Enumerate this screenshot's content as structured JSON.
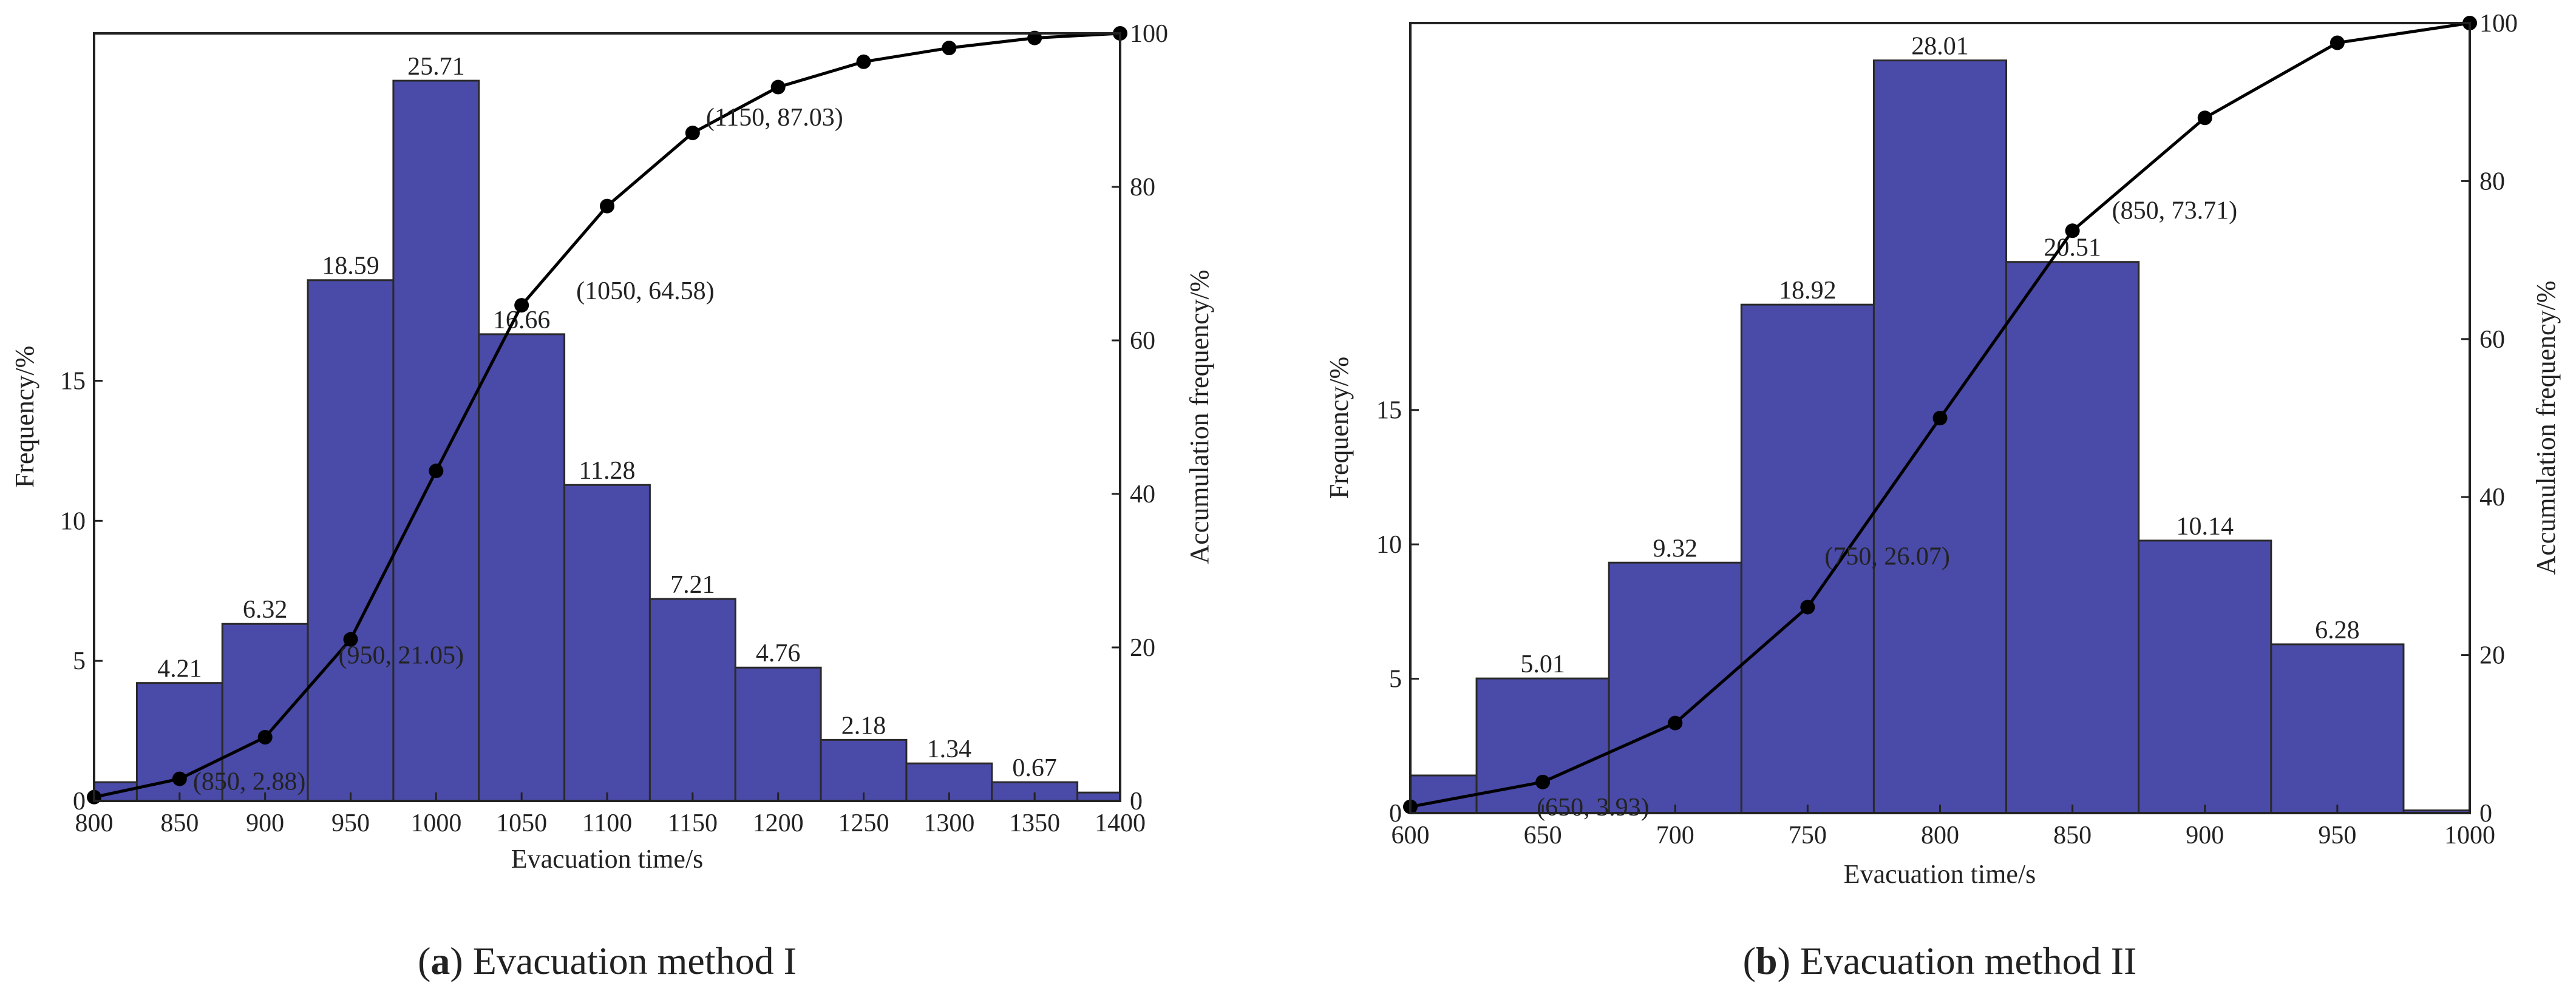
{
  "panels": [
    {
      "id": "a",
      "caption_letter": "a",
      "caption_text": "Evacuation method I",
      "xlabel": "Evacuation time/s",
      "ylabel": "Frequency/%",
      "y2label": "Accumulation frequency/%"
    },
    {
      "id": "b",
      "caption_letter": "b",
      "caption_text": "Evacuation method II",
      "xlabel": "Evacuation time/s",
      "ylabel": "Frequency/%",
      "y2label": "Accumulation frequency/%"
    }
  ],
  "colors": {
    "bar_fill": "#4a4aa8",
    "bar_stroke": "#2a2a2a",
    "line": "#000000",
    "axis": "#222222"
  },
  "chart_data": [
    {
      "type": "bar",
      "title": "(a) Evacuation method I",
      "xlabel": "Evacuation time/s",
      "ylabel": "Frequency/%",
      "y2label": "Accumulation frequency/%",
      "xlim": [
        800,
        1400
      ],
      "ylim": [
        0,
        27.4
      ],
      "y2lim": [
        0,
        100
      ],
      "bin_width": 50,
      "x_ticks": [
        800,
        850,
        900,
        950,
        1000,
        1050,
        1100,
        1150,
        1200,
        1250,
        1300,
        1350,
        1400
      ],
      "y_ticks": [
        0,
        5,
        10,
        15
      ],
      "y2_ticks": [
        0,
        20,
        40,
        60,
        80,
        100
      ],
      "bars": [
        {
          "center": 800,
          "value": 0.67,
          "label": ""
        },
        {
          "center": 850,
          "value": 4.21,
          "label": "4.21"
        },
        {
          "center": 900,
          "value": 6.32,
          "label": "6.32"
        },
        {
          "center": 950,
          "value": 18.59,
          "label": "18.59"
        },
        {
          "center": 1000,
          "value": 25.71,
          "label": "25.71"
        },
        {
          "center": 1050,
          "value": 16.66,
          "label": "16.66"
        },
        {
          "center": 1100,
          "value": 11.28,
          "label": "11.28"
        },
        {
          "center": 1150,
          "value": 7.21,
          "label": "7.21"
        },
        {
          "center": 1200,
          "value": 4.76,
          "label": "4.76"
        },
        {
          "center": 1250,
          "value": 2.18,
          "label": "2.18"
        },
        {
          "center": 1300,
          "value": 1.34,
          "label": "1.34"
        },
        {
          "center": 1350,
          "value": 0.67,
          "label": "0.67"
        },
        {
          "center": 1400,
          "value": 0.3,
          "label": ""
        }
      ],
      "cumulative": {
        "x": [
          800,
          850,
          900,
          950,
          1000,
          1050,
          1100,
          1150,
          1200,
          1250,
          1300,
          1350,
          1400
        ],
        "y": [
          0.5,
          2.88,
          8.3,
          21.05,
          43.0,
          64.58,
          77.5,
          87.03,
          93.0,
          96.3,
          98.1,
          99.4,
          100
        ]
      },
      "annotations": [
        {
          "text": "(850, 2.88)",
          "x": 850,
          "y2": 2.88
        },
        {
          "text": "(950, 21.05)",
          "x": 950,
          "y2": 21.05
        },
        {
          "text": "(1050, 64.58)",
          "x": 1050,
          "y2": 64.58
        },
        {
          "text": "(1150, 87.03)",
          "x": 1150,
          "y2": 87.03
        }
      ]
    },
    {
      "type": "bar",
      "title": "(b) Evacuation method II",
      "xlabel": "Evacuation time/s",
      "ylabel": "Frequency/%",
      "y2label": "Accumulation frequency/%",
      "xlim": [
        600,
        1000
      ],
      "ylim": [
        0,
        29.4
      ],
      "y2lim": [
        0,
        100
      ],
      "bin_width": 50,
      "x_ticks": [
        600,
        650,
        700,
        750,
        800,
        850,
        900,
        950,
        1000
      ],
      "y_ticks": [
        0,
        5,
        10,
        15
      ],
      "y2_ticks": [
        0,
        20,
        40,
        60,
        80,
        100
      ],
      "bars": [
        {
          "center": 600,
          "value": 1.4,
          "label": ""
        },
        {
          "center": 650,
          "value": 5.01,
          "label": "5.01"
        },
        {
          "center": 700,
          "value": 9.32,
          "label": "9.32"
        },
        {
          "center": 750,
          "value": 18.92,
          "label": "18.92"
        },
        {
          "center": 800,
          "value": 28.01,
          "label": "28.01"
        },
        {
          "center": 850,
          "value": 20.51,
          "label": "20.51"
        },
        {
          "center": 900,
          "value": 10.14,
          "label": "10.14"
        },
        {
          "center": 950,
          "value": 6.28,
          "label": "6.28"
        },
        {
          "center": 1000,
          "value": 0.1,
          "label": ""
        }
      ],
      "cumulative": {
        "x": [
          600,
          650,
          700,
          750,
          800,
          850,
          900,
          950,
          1000
        ],
        "y": [
          0.8,
          3.93,
          11.4,
          26.07,
          50.0,
          73.71,
          88.0,
          97.5,
          100
        ]
      },
      "annotations": [
        {
          "text": "(650, 3.93)",
          "x": 650,
          "y2": 3.93
        },
        {
          "text": "(750, 26.07)",
          "x": 750,
          "y2": 26.07
        },
        {
          "text": "(850, 73.71)",
          "x": 850,
          "y2": 73.71
        }
      ]
    }
  ]
}
